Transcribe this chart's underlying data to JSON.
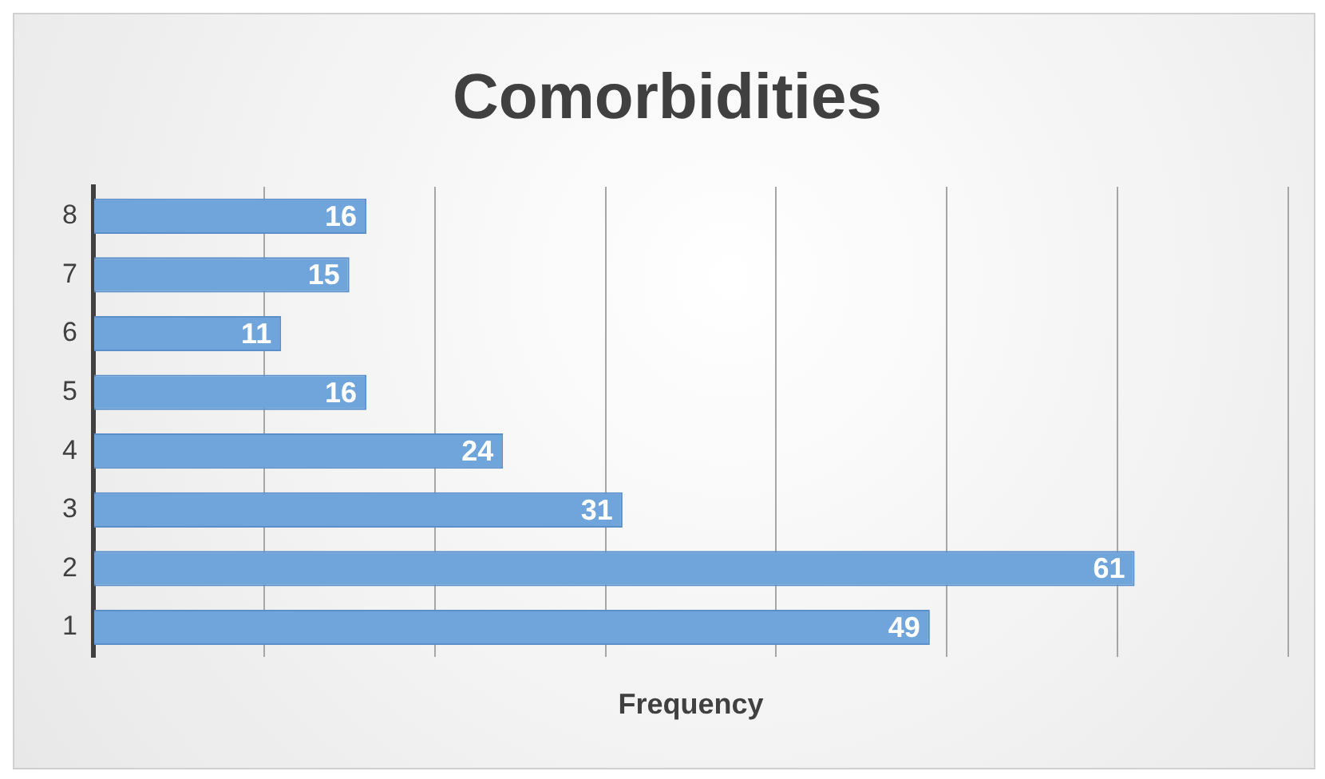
{
  "chart_data": {
    "type": "bar",
    "orientation": "horizontal",
    "title": "Comorbidities",
    "xlabel": "Frequency",
    "categories": [
      "8",
      "7",
      "6",
      "5",
      "4",
      "3",
      "2",
      "1"
    ],
    "values": [
      16,
      15,
      11,
      16,
      24,
      31,
      61,
      49
    ],
    "color": "#6fa5db",
    "xlim": [
      0,
      70
    ],
    "xticks": [
      {
        "value": 0,
        "label": null
      },
      {
        "value": 10,
        "label": null
      },
      {
        "value": 20,
        "label": null
      },
      {
        "value": 30,
        "label": null
      },
      {
        "value": 40,
        "label": null
      },
      {
        "value": 50,
        "label": null
      },
      {
        "value": 60,
        "label": null
      },
      {
        "value": 70,
        "label": null
      }
    ],
    "grid": "x",
    "tick_labels": "y",
    "data_labels": true,
    "legend": false
  }
}
